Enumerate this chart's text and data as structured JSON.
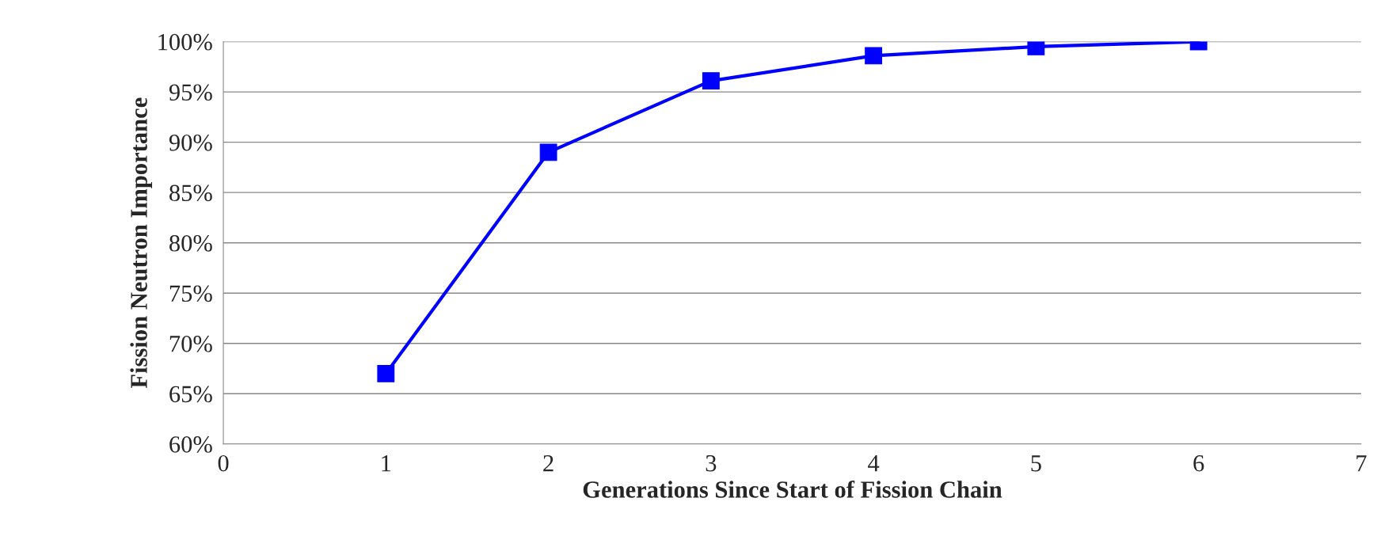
{
  "chart_data": {
    "type": "line",
    "xlabel": "Generations Since Start of Fission Chain",
    "ylabel": "Fission Neutron Importance",
    "x": [
      1,
      2,
      3,
      4,
      5,
      6
    ],
    "series": [
      {
        "color": "#0000ff",
        "values": [
          67,
          89,
          96.1,
          98.6,
          99.5,
          100
        ]
      }
    ],
    "xlim": [
      0,
      7
    ],
    "xticks": [
      0,
      1,
      2,
      3,
      4,
      5,
      6,
      7
    ],
    "ylim": [
      60,
      100
    ],
    "yticks": [
      {
        "value": 60,
        "label": "60%"
      },
      {
        "value": 65,
        "label": "65%"
      },
      {
        "value": 70,
        "label": "70%"
      },
      {
        "value": 75,
        "label": "75%"
      },
      {
        "value": 80,
        "label": "80%"
      },
      {
        "value": 85,
        "label": "85%"
      },
      {
        "value": 90,
        "label": "90%"
      },
      {
        "value": 95,
        "label": "95%"
      },
      {
        "value": 100,
        "label": "100%"
      }
    ],
    "grid": "y",
    "marker": "square",
    "line_style": "solid"
  }
}
